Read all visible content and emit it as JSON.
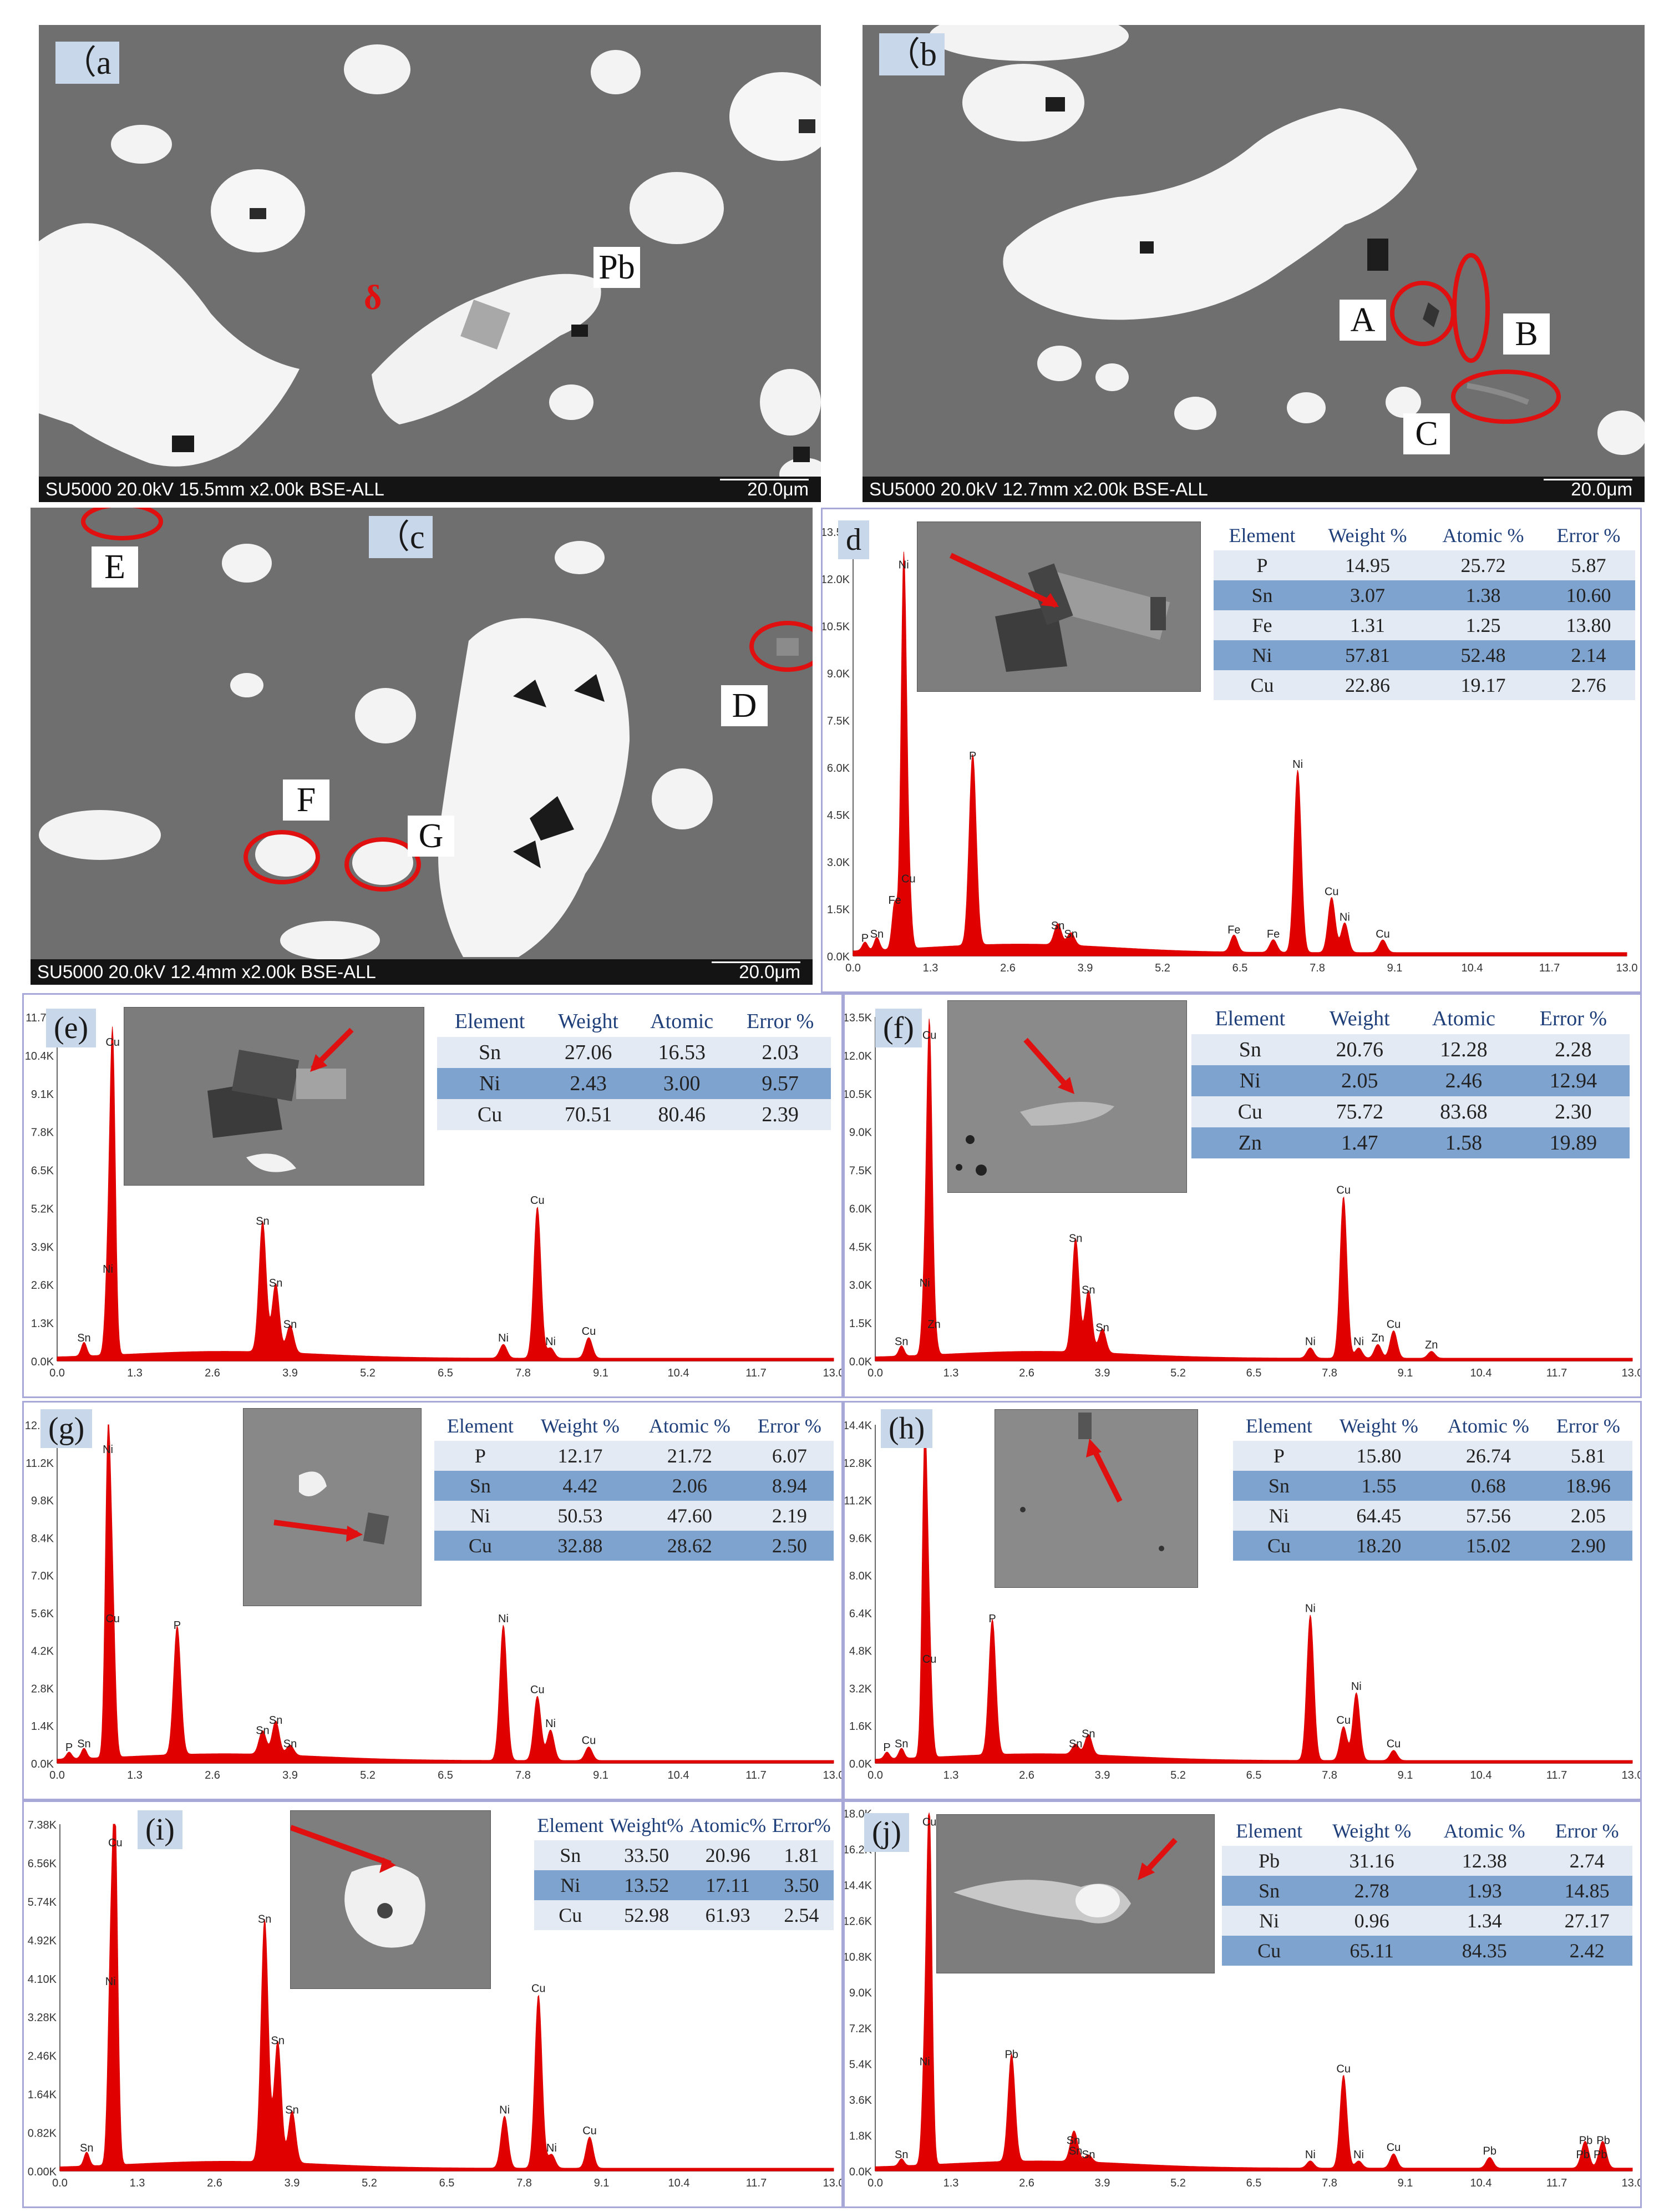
{
  "sem_panels": [
    {
      "id": "a",
      "label": "（a",
      "caption": "SU5000 20.0kV 15.5mm x2.00k BSE-ALL",
      "scale": "20.0μm",
      "tags": [
        "Pb"
      ],
      "delta": "δ"
    },
    {
      "id": "b",
      "label": "（b",
      "caption": "SU5000 20.0kV 12.7mm x2.00k BSE-ALL",
      "scale": "20.0μm",
      "tags": [
        "A",
        "B",
        "C"
      ]
    },
    {
      "id": "c",
      "label": "（c",
      "caption": "SU5000 20.0kV 12.4mm x2.00k BSE-ALL",
      "scale": "20.0μm",
      "tags": [
        "E",
        "D",
        "F",
        "G"
      ]
    }
  ],
  "eds_panels": [
    {
      "id": "d",
      "label": "d",
      "headers": [
        "Element",
        "Weight %",
        "Atomic %",
        "Error %"
      ],
      "rows": [
        [
          "P",
          "14.95",
          "25.72",
          "5.87"
        ],
        [
          "Sn",
          "3.07",
          "1.38",
          "10.60"
        ],
        [
          "Fe",
          "1.31",
          "1.25",
          "13.80"
        ],
        [
          "Ni",
          "57.81",
          "52.48",
          "2.14"
        ],
        [
          "Cu",
          "22.86",
          "19.17",
          "2.76"
        ]
      ],
      "yticks": [
        "0.0K",
        "1.5K",
        "3.0K",
        "4.5K",
        "6.0K",
        "7.5K",
        "9.0K",
        "10.5K",
        "12.0K",
        "13.5K"
      ],
      "xticks": [
        "0.0",
        "1.3",
        "2.6",
        "3.9",
        "5.2",
        "6.5",
        "7.8",
        "9.1",
        "10.4",
        "11.7",
        "13.0"
      ],
      "peaks": [
        {
          "x": 0.85,
          "h": 0.9,
          "label": "Ni"
        },
        {
          "x": 0.93,
          "h": 0.16,
          "label": "Cu"
        },
        {
          "x": 0.7,
          "h": 0.11,
          "label": "Fe"
        },
        {
          "x": 0.2,
          "h": 0.02,
          "label": "P"
        },
        {
          "x": 0.4,
          "h": 0.03,
          "label": "Sn"
        },
        {
          "x": 2.01,
          "h": 0.45,
          "label": "P"
        },
        {
          "x": 3.44,
          "h": 0.05,
          "label": "Sn"
        },
        {
          "x": 3.66,
          "h": 0.03,
          "label": "Sn"
        },
        {
          "x": 6.4,
          "h": 0.04,
          "label": "Fe"
        },
        {
          "x": 7.06,
          "h": 0.03,
          "label": "Fe"
        },
        {
          "x": 7.47,
          "h": 0.43,
          "label": "Ni"
        },
        {
          "x": 8.04,
          "h": 0.13,
          "label": "Cu"
        },
        {
          "x": 8.26,
          "h": 0.07,
          "label": "Ni"
        },
        {
          "x": 8.9,
          "h": 0.03,
          "label": "Cu"
        }
      ]
    },
    {
      "id": "e",
      "label": "(e)",
      "headers": [
        "Element",
        "Weight",
        "Atomic",
        "Error %"
      ],
      "rows": [
        [
          "Sn",
          "27.06",
          "16.53",
          "2.03"
        ],
        [
          "Ni",
          "2.43",
          "3.00",
          "9.57"
        ],
        [
          "Cu",
          "70.51",
          "80.46",
          "2.39"
        ]
      ],
      "yticks": [
        "0.0K",
        "1.3K",
        "2.6K",
        "3.9K",
        "5.2K",
        "6.5K",
        "7.8K",
        "9.1K",
        "10.4K",
        "11.7K"
      ],
      "xticks": [
        "0.0",
        "1.3",
        "2.6",
        "3.9",
        "5.2",
        "6.5",
        "7.8",
        "9.1",
        "10.4",
        "11.7",
        "13.0"
      ],
      "peaks": [
        {
          "x": 0.93,
          "h": 0.9,
          "label": "Cu"
        },
        {
          "x": 0.85,
          "h": 0.24,
          "label": "Ni"
        },
        {
          "x": 0.45,
          "h": 0.04,
          "label": "Sn"
        },
        {
          "x": 3.44,
          "h": 0.38,
          "label": "Sn"
        },
        {
          "x": 3.66,
          "h": 0.2,
          "label": "Sn"
        },
        {
          "x": 3.9,
          "h": 0.08,
          "label": "Sn"
        },
        {
          "x": 7.47,
          "h": 0.04,
          "label": "Ni"
        },
        {
          "x": 8.04,
          "h": 0.44,
          "label": "Cu"
        },
        {
          "x": 8.26,
          "h": 0.03,
          "label": "Ni"
        },
        {
          "x": 8.9,
          "h": 0.06,
          "label": "Cu"
        }
      ]
    },
    {
      "id": "f",
      "label": "(f)",
      "headers": [
        "Element",
        "Weight",
        "Atomic",
        "Error %"
      ],
      "rows": [
        [
          "Sn",
          "20.76",
          "12.28",
          "2.28"
        ],
        [
          "Ni",
          "2.05",
          "2.46",
          "12.94"
        ],
        [
          "Cu",
          "75.72",
          "83.68",
          "2.30"
        ],
        [
          "Zn",
          "1.47",
          "1.58",
          "19.89"
        ]
      ],
      "yticks": [
        "0.0K",
        "1.5K",
        "3.0K",
        "4.5K",
        "6.0K",
        "7.5K",
        "9.0K",
        "10.5K",
        "12.0K",
        "13.5K"
      ],
      "xticks": [
        "0.0",
        "1.3",
        "2.6",
        "3.9",
        "5.2",
        "6.5",
        "7.8",
        "9.1",
        "10.4",
        "11.7",
        "13.0"
      ],
      "peaks": [
        {
          "x": 0.93,
          "h": 0.92,
          "label": "Cu"
        },
        {
          "x": 0.85,
          "h": 0.2,
          "label": "Ni"
        },
        {
          "x": 1.01,
          "h": 0.08,
          "label": "Zn"
        },
        {
          "x": 0.45,
          "h": 0.03,
          "label": "Sn"
        },
        {
          "x": 3.44,
          "h": 0.33,
          "label": "Sn"
        },
        {
          "x": 3.66,
          "h": 0.18,
          "label": "Sn"
        },
        {
          "x": 3.9,
          "h": 0.07,
          "label": "Sn"
        },
        {
          "x": 7.47,
          "h": 0.03,
          "label": "Ni"
        },
        {
          "x": 8.04,
          "h": 0.47,
          "label": "Cu"
        },
        {
          "x": 8.3,
          "h": 0.03,
          "label": "Ni"
        },
        {
          "x": 8.63,
          "h": 0.04,
          "label": "Zn"
        },
        {
          "x": 8.9,
          "h": 0.08,
          "label": "Cu"
        },
        {
          "x": 9.55,
          "h": 0.02,
          "label": "Zn"
        }
      ]
    },
    {
      "id": "g",
      "label": "(g)",
      "headers": [
        "Element",
        "Weight %",
        "Atomic %",
        "Error %"
      ],
      "rows": [
        [
          "P",
          "12.17",
          "21.72",
          "6.07"
        ],
        [
          "Sn",
          "4.42",
          "2.06",
          "8.94"
        ],
        [
          "Ni",
          "50.53",
          "47.60",
          "2.19"
        ],
        [
          "Cu",
          "32.88",
          "28.62",
          "2.50"
        ]
      ],
      "yticks": [
        "0.0K",
        "1.4K",
        "2.8K",
        "4.2K",
        "5.6K",
        "7.0K",
        "8.4K",
        "9.8K",
        "11.2K",
        "12.6K"
      ],
      "xticks": [
        "0.0",
        "1.3",
        "2.6",
        "3.9",
        "5.2",
        "6.5",
        "7.8",
        "9.1",
        "10.4",
        "11.7",
        "13.0"
      ],
      "peaks": [
        {
          "x": 0.85,
          "h": 0.9,
          "label": "Ni"
        },
        {
          "x": 0.93,
          "h": 0.4,
          "label": "Cu"
        },
        {
          "x": 0.2,
          "h": 0.02,
          "label": "P"
        },
        {
          "x": 0.45,
          "h": 0.03,
          "label": "Sn"
        },
        {
          "x": 2.01,
          "h": 0.38,
          "label": "P"
        },
        {
          "x": 3.44,
          "h": 0.07,
          "label": "Sn"
        },
        {
          "x": 3.66,
          "h": 0.1,
          "label": "Sn"
        },
        {
          "x": 3.9,
          "h": 0.03,
          "label": "Sn"
        },
        {
          "x": 7.47,
          "h": 0.4,
          "label": "Ni"
        },
        {
          "x": 8.04,
          "h": 0.19,
          "label": "Cu"
        },
        {
          "x": 8.26,
          "h": 0.09,
          "label": "Ni"
        },
        {
          "x": 8.9,
          "h": 0.04,
          "label": "Cu"
        }
      ]
    },
    {
      "id": "h",
      "label": "(h)",
      "headers": [
        "Element",
        "Weight %",
        "Atomic %",
        "Error %"
      ],
      "rows": [
        [
          "P",
          "15.80",
          "26.74",
          "5.81"
        ],
        [
          "Sn",
          "1.55",
          "0.68",
          "18.96"
        ],
        [
          "Ni",
          "64.45",
          "57.56",
          "2.05"
        ],
        [
          "Cu",
          "18.20",
          "15.02",
          "2.90"
        ]
      ],
      "yticks": [
        "0.0K",
        "1.6K",
        "3.2K",
        "4.8K",
        "6.4K",
        "8.0K",
        "9.6K",
        "11.2K",
        "12.8K",
        "14.4K"
      ],
      "xticks": [
        "0.0",
        "1.3",
        "2.6",
        "3.9",
        "5.2",
        "6.5",
        "7.8",
        "9.1",
        "10.4",
        "11.7",
        "13.0"
      ],
      "peaks": [
        {
          "x": 0.85,
          "h": 0.92,
          "label": "Ni"
        },
        {
          "x": 0.93,
          "h": 0.28,
          "label": "Cu"
        },
        {
          "x": 0.2,
          "h": 0.02,
          "label": "P"
        },
        {
          "x": 0.45,
          "h": 0.03,
          "label": "Sn"
        },
        {
          "x": 2.01,
          "h": 0.4,
          "label": "P"
        },
        {
          "x": 3.44,
          "h": 0.03,
          "label": "Sn"
        },
        {
          "x": 3.66,
          "h": 0.06,
          "label": "Sn"
        },
        {
          "x": 7.47,
          "h": 0.43,
          "label": "Ni"
        },
        {
          "x": 8.04,
          "h": 0.1,
          "label": "Cu"
        },
        {
          "x": 8.26,
          "h": 0.2,
          "label": "Ni"
        },
        {
          "x": 8.9,
          "h": 0.03,
          "label": "Cu"
        }
      ]
    },
    {
      "id": "i",
      "label": "(i)",
      "headers": [
        "Element",
        "Weight%",
        "Atomic%",
        "Error%"
      ],
      "rows": [
        [
          "Sn",
          "33.50",
          "20.96",
          "1.81"
        ],
        [
          "Ni",
          "13.52",
          "17.11",
          "3.50"
        ],
        [
          "Cu",
          "52.98",
          "61.93",
          "2.54"
        ]
      ],
      "yticks": [
        "0.00K",
        "0.82K",
        "1.64K",
        "2.46K",
        "3.28K",
        "4.10K",
        "4.92K",
        "5.74K",
        "6.56K",
        "7.38K"
      ],
      "xticks": [
        "0.0",
        "1.3",
        "2.6",
        "3.9",
        "5.2",
        "6.5",
        "7.8",
        "9.1",
        "10.4",
        "11.7",
        "13.0"
      ],
      "peaks": [
        {
          "x": 0.93,
          "h": 0.92,
          "label": "Cu"
        },
        {
          "x": 0.85,
          "h": 0.52,
          "label": "Ni"
        },
        {
          "x": 0.45,
          "h": 0.04,
          "label": "Sn"
        },
        {
          "x": 3.44,
          "h": 0.7,
          "label": "Sn"
        },
        {
          "x": 3.66,
          "h": 0.35,
          "label": "Sn"
        },
        {
          "x": 3.9,
          "h": 0.15,
          "label": "Sn"
        },
        {
          "x": 7.47,
          "h": 0.15,
          "label": "Ni"
        },
        {
          "x": 8.04,
          "h": 0.5,
          "label": "Cu"
        },
        {
          "x": 8.26,
          "h": 0.04,
          "label": "Ni"
        },
        {
          "x": 8.9,
          "h": 0.09,
          "label": "Cu"
        }
      ]
    },
    {
      "id": "j",
      "label": "(j)",
      "headers": [
        "Element",
        "Weight %",
        "Atomic %",
        "Error %"
      ],
      "rows": [
        [
          "Pb",
          "31.16",
          "12.38",
          "2.74"
        ],
        [
          "Sn",
          "2.78",
          "1.93",
          "14.85"
        ],
        [
          "Ni",
          "0.96",
          "1.34",
          "27.17"
        ],
        [
          "Cu",
          "65.11",
          "84.35",
          "2.42"
        ]
      ],
      "yticks": [
        "0.0K",
        "1.8K",
        "3.6K",
        "5.4K",
        "7.2K",
        "9.0K",
        "10.8K",
        "12.6K",
        "14.4K",
        "16.2K",
        "18.0K"
      ],
      "xticks": [
        "0.0",
        "1.3",
        "2.6",
        "3.9",
        "5.2",
        "6.5",
        "7.8",
        "9.1",
        "10.4",
        "11.7",
        "13.0"
      ],
      "peaks": [
        {
          "x": 0.93,
          "h": 0.95,
          "label": "Cu"
        },
        {
          "x": 0.85,
          "h": 0.28,
          "label": "Ni"
        },
        {
          "x": 0.45,
          "h": 0.02,
          "label": "Sn"
        },
        {
          "x": 2.34,
          "h": 0.3,
          "label": "Pb"
        },
        {
          "x": 3.44,
          "h": 0.03,
          "label": "Sn"
        },
        {
          "x": 3.66,
          "h": 0.02,
          "label": "Sn"
        },
        {
          "x": 3.4,
          "h": 0.06,
          "label": "Sn"
        },
        {
          "x": 7.47,
          "h": 0.02,
          "label": "Ni"
        },
        {
          "x": 8.04,
          "h": 0.26,
          "label": "Cu"
        },
        {
          "x": 8.3,
          "h": 0.02,
          "label": "Ni"
        },
        {
          "x": 8.9,
          "h": 0.04,
          "label": "Cu"
        },
        {
          "x": 10.55,
          "h": 0.03,
          "label": "Pb"
        },
        {
          "x": 12.15,
          "h": 0.02,
          "label": "Pb"
        },
        {
          "x": 12.45,
          "h": 0.02,
          "label": "Pb"
        },
        {
          "x": 12.2,
          "h": 0.06,
          "label": "Pb"
        },
        {
          "x": 12.5,
          "h": 0.06,
          "label": "Pb"
        }
      ]
    }
  ],
  "colors": {
    "spectrum": "#e00000",
    "highlight": "#e01010",
    "table_dark": "#7fa3cf",
    "table_light": "#e4eaf3"
  }
}
